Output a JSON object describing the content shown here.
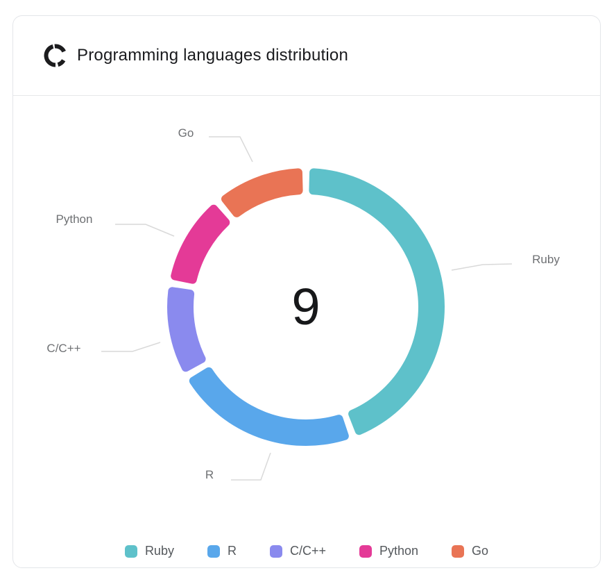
{
  "header": {
    "title": "Programming languages distribution",
    "icon": "donut-chart-icon"
  },
  "chart_data": {
    "type": "pie",
    "variant": "donut",
    "title": "Programming languages distribution",
    "total": 9,
    "total_label": "9",
    "legend_position": "bottom",
    "start_angle_deg": 0,
    "direction": "clockwise",
    "series": [
      {
        "name": "Ruby",
        "value": 4,
        "color": "#5EC1CA"
      },
      {
        "name": "R",
        "value": 2,
        "color": "#59A7EB"
      },
      {
        "name": "C/C++",
        "value": 1,
        "color": "#8A8AEE"
      },
      {
        "name": "Python",
        "value": 1,
        "color": "#E43A97"
      },
      {
        "name": "Go",
        "value": 1,
        "color": "#E97455"
      }
    ]
  }
}
